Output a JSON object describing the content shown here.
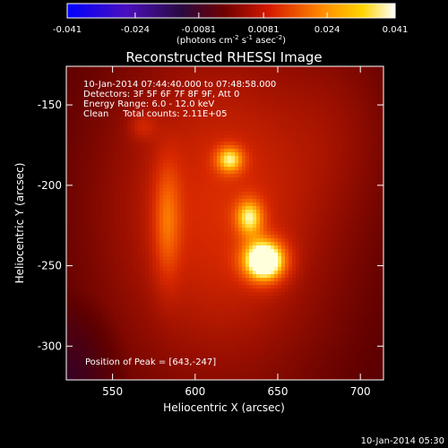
{
  "colorbar": {
    "ticks": [
      "-0.041",
      "-0.024",
      "-0.0081",
      "0.0081",
      "0.024",
      "0.041"
    ],
    "tick_values": [
      -0.041,
      -0.024,
      -0.0081,
      0.0081,
      0.024,
      0.041
    ],
    "range": [
      -0.041,
      0.041
    ],
    "units_text": "(photons cm",
    "units_exp1": "-2",
    "units_mid": " s",
    "units_exp2": "-1",
    "units_mid2": " asec",
    "units_exp3": "-2",
    "units_close": ")"
  },
  "chart_data": {
    "type": "heatmap",
    "title": "Reconstructed RHESSI Image",
    "xlabel": "Heliocentric X (arcsec)",
    "ylabel": "Heliocentric Y (arcsec)",
    "xlim": [
      522,
      714
    ],
    "ylim": [
      -321,
      -126
    ],
    "xticks": [
      550,
      600,
      650,
      700
    ],
    "yticks": [
      -150,
      -200,
      -250,
      -300
    ],
    "annotations": [
      "10-Jan-2014 07:44:40.000 to 07:48:58.000",
      "Detectors: 3F 5F 6F 7F 8F 9F, Att 0",
      "Energy Range: 6.0 - 12.0 keV",
      "Clean     Total counts: 2.11E+05"
    ],
    "peak_label": "Position of Peak = [643,-247]",
    "peak": [
      643,
      -247
    ],
    "sources": [
      {
        "x": 642,
        "y": -247,
        "sx": 9,
        "sy": 9,
        "amp": 1.0
      },
      {
        "x": 633,
        "y": -220,
        "sx": 6,
        "sy": 8,
        "amp": 0.55
      },
      {
        "x": 621,
        "y": -184,
        "sx": 6,
        "sy": 6,
        "amp": 0.55
      },
      {
        "x": 583,
        "y": -222,
        "sx": 6,
        "sy": 26,
        "amp": 0.32
      },
      {
        "x": 568,
        "y": -163,
        "sx": 6,
        "sy": 6,
        "amp": 0.18
      }
    ],
    "background": [
      {
        "x": 615,
        "y": -215,
        "sx": 55,
        "sy": 85,
        "amp": 0.52
      },
      {
        "x": 690,
        "y": -160,
        "sx": 25,
        "sy": 40,
        "amp": 0.12
      }
    ]
  },
  "footer": {
    "date": "10-Jan-2014 05:30"
  }
}
